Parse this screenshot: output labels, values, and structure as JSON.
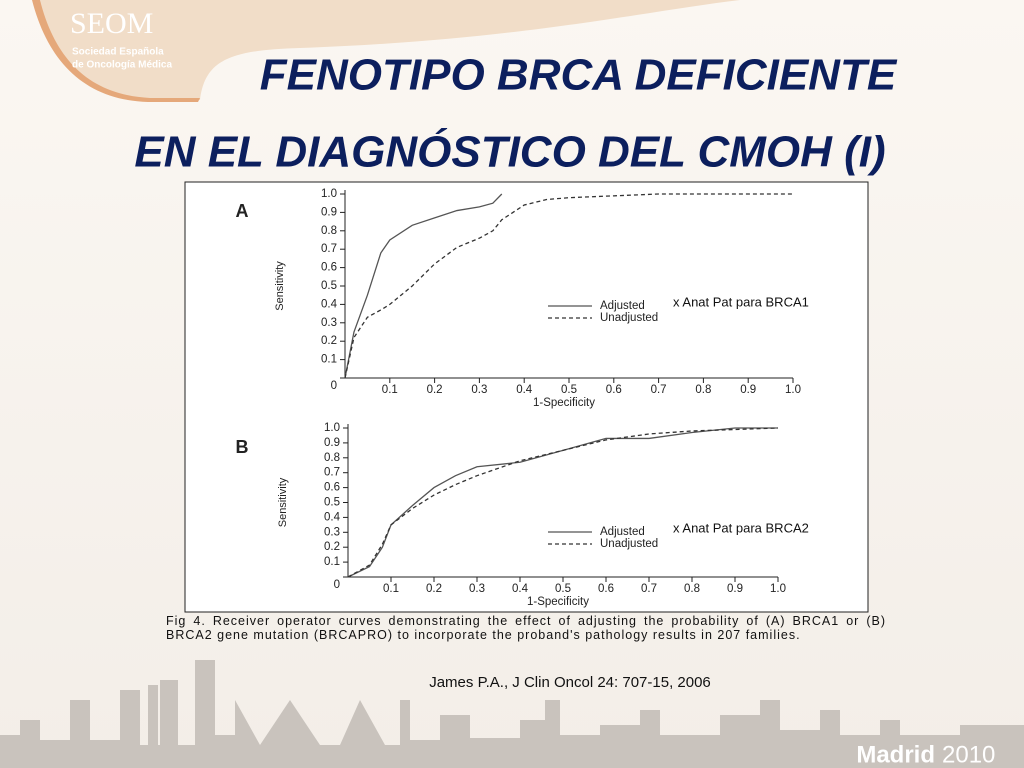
{
  "logo": {
    "name": "SEOM",
    "lines": [
      "Sociedad Española",
      "de Oncología Médica"
    ]
  },
  "title": [
    "FENOTIPO BRCA DEFICIENTE",
    "EN EL DIAGNÓSTICO DEL CMOH (I)"
  ],
  "chart_data": [
    {
      "type": "line",
      "panel": "A",
      "ylabel": "Sensitivity",
      "xlabel": "1-Specificity",
      "annotation": "x Anat Pat para BRCA1",
      "x": [
        0,
        0.02,
        0.05,
        0.08,
        0.1,
        0.15,
        0.2,
        0.25,
        0.3,
        0.33,
        0.35,
        0.4,
        0.45,
        0.5,
        0.6,
        0.7,
        0.8,
        0.9,
        1
      ],
      "series": [
        {
          "name": "Adjusted",
          "color": "#555555",
          "style": "solid",
          "values": [
            0,
            0.25,
            0.45,
            0.68,
            0.75,
            0.83,
            0.87,
            0.91,
            0.93,
            0.95,
            1.0,
            null,
            null,
            null,
            null,
            null,
            null,
            null,
            null
          ]
        },
        {
          "name": "Unadjusted",
          "color": "#333333",
          "style": "dashed",
          "values": [
            0,
            0.22,
            0.33,
            0.37,
            0.4,
            0.5,
            0.62,
            0.71,
            0.76,
            0.8,
            0.86,
            0.94,
            0.97,
            0.98,
            0.99,
            1.0,
            1.0,
            1.0,
            1.0
          ]
        }
      ],
      "xlim": [
        0,
        1
      ],
      "ylim": [
        0,
        1
      ],
      "xticks": [
        0.1,
        0.2,
        0.3,
        0.4,
        0.5,
        0.6,
        0.7,
        0.8,
        0.9,
        {
          "value": 1,
          "label": "1.0"
        }
      ],
      "yticks": [
        0,
        0.1,
        0.2,
        0.3,
        0.4,
        0.5,
        0.6,
        0.7,
        0.8,
        0.9,
        {
          "value": 1,
          "label": "1.0"
        }
      ]
    },
    {
      "type": "line",
      "panel": "B",
      "ylabel": "Sensitivity",
      "xlabel": "1-Specificity",
      "annotation": "x Anat Pat para BRCA2",
      "x": [
        0,
        0.05,
        0.08,
        0.1,
        0.15,
        0.2,
        0.25,
        0.3,
        0.4,
        0.5,
        0.6,
        0.7,
        0.8,
        0.9,
        1
      ],
      "series": [
        {
          "name": "Adjusted",
          "color": "#555555",
          "style": "solid",
          "values": [
            0,
            0.07,
            0.2,
            0.35,
            0.48,
            0.6,
            0.68,
            0.74,
            0.77,
            0.85,
            0.93,
            0.93,
            0.97,
            1.0,
            1.0
          ]
        },
        {
          "name": "Unadjusted",
          "color": "#333333",
          "style": "dashed",
          "values": [
            0,
            0.08,
            0.22,
            0.35,
            0.46,
            0.55,
            0.62,
            0.68,
            0.78,
            0.85,
            0.92,
            0.96,
            0.98,
            0.99,
            1.0
          ]
        }
      ],
      "xlim": [
        0,
        1
      ],
      "ylim": [
        0,
        1
      ],
      "xticks": [
        0.1,
        0.2,
        0.3,
        0.4,
        0.5,
        0.6,
        0.7,
        0.8,
        0.9,
        {
          "value": 1,
          "label": "1.0"
        }
      ],
      "yticks": [
        0,
        0.1,
        0.2,
        0.3,
        0.4,
        0.5,
        0.6,
        0.7,
        0.8,
        0.9,
        {
          "value": 1,
          "label": "1.0"
        }
      ]
    }
  ],
  "caption": "Fig 4. Receiver operator curves demonstrating the effect of adjusting the probability of (A) BRCA1 or (B) BRCA2 gene mutation (BRCAPRO) to incorporate the proband's pathology results in 207 families.",
  "citation": "James P.A., J Clin Oncol 24: 707-15, 2006",
  "footer": {
    "city": "Madrid",
    "year": "2010"
  }
}
